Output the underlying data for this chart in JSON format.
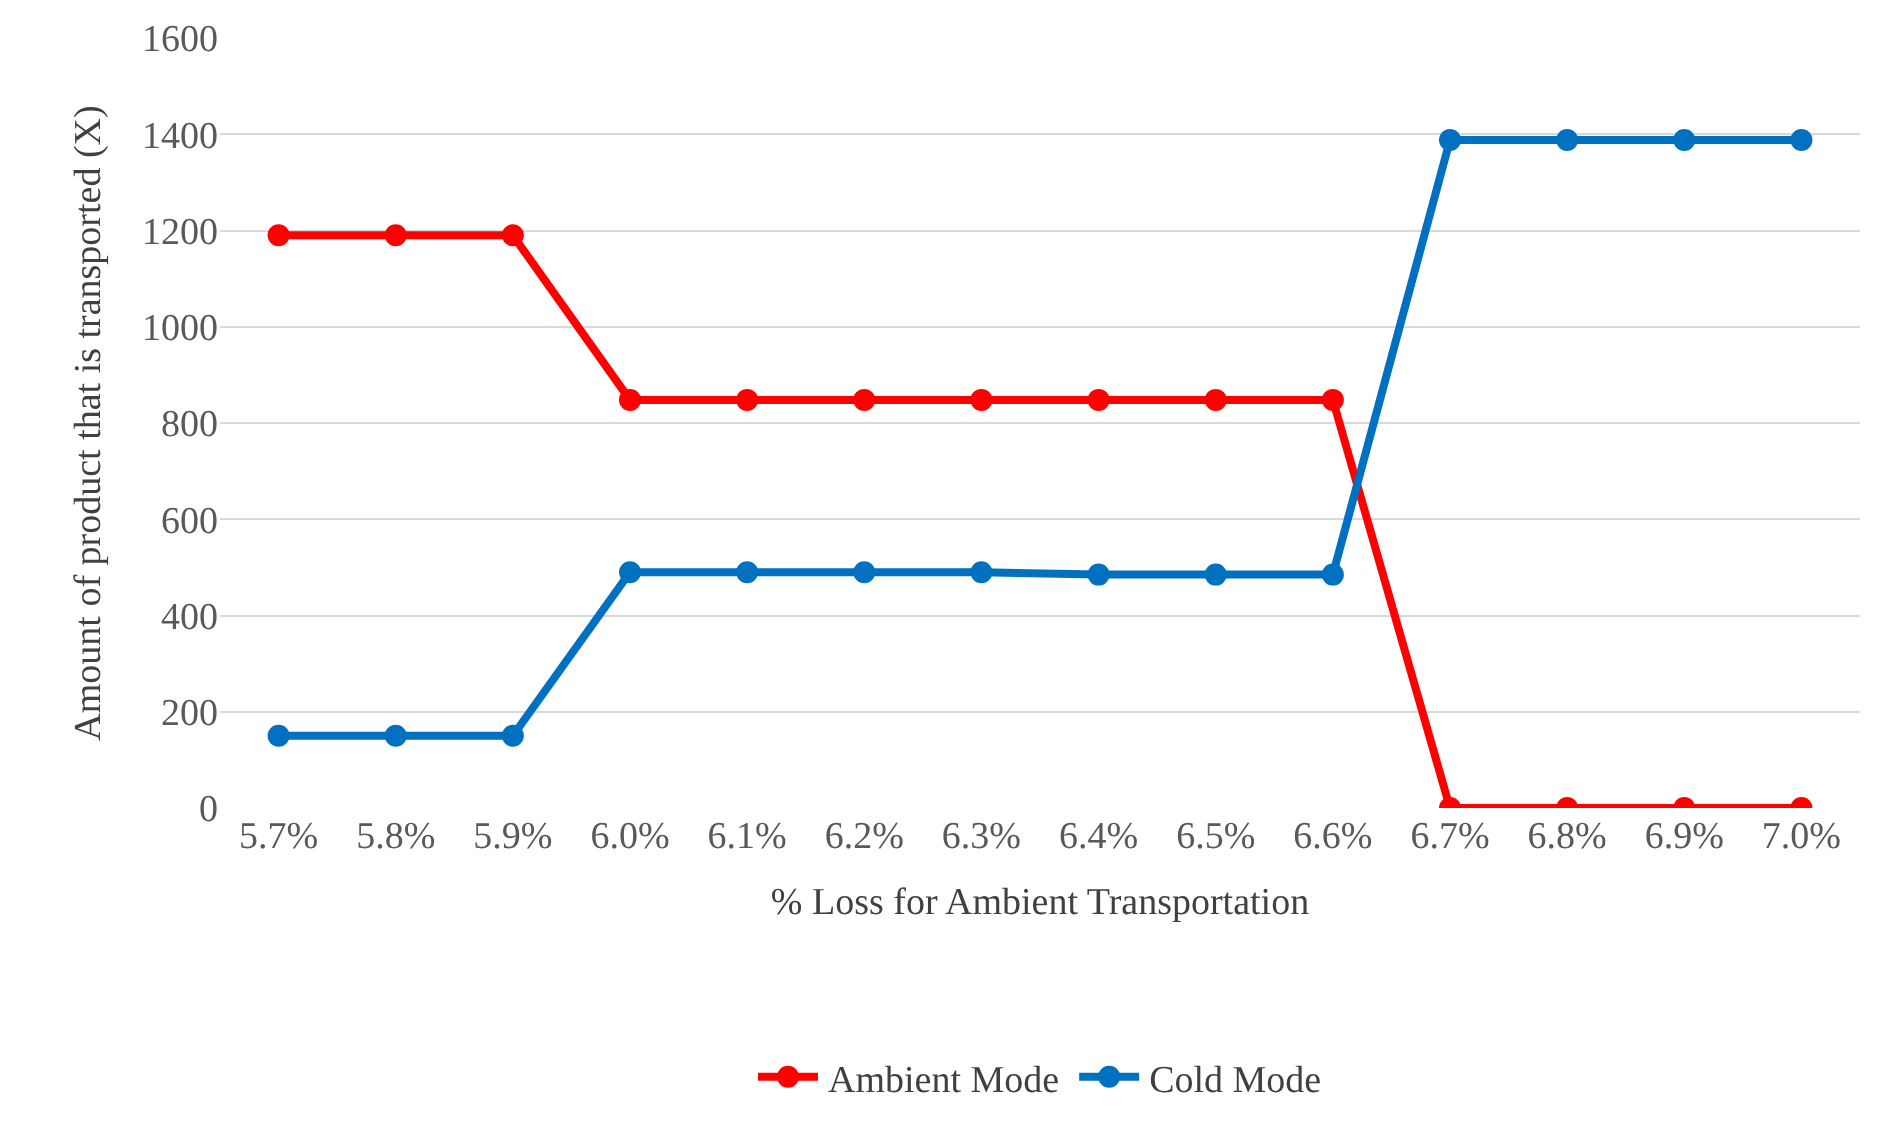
{
  "chart_data": {
    "type": "line",
    "xlabel": "% Loss for Ambient Transportation",
    "ylabel": "Amount of product that is transported (X)",
    "categories": [
      "5.7%",
      "5.8%",
      "5.9%",
      "6.0%",
      "6.1%",
      "6.2%",
      "6.3%",
      "6.4%",
      "6.5%",
      "6.6%",
      "6.7%",
      "6.8%",
      "6.9%",
      "7.0%"
    ],
    "series": [
      {
        "name": "Ambient Mode",
        "color": "#ff0000",
        "values": [
          1190,
          1190,
          1190,
          848,
          848,
          848,
          848,
          848,
          848,
          848,
          0,
          0,
          0,
          0
        ]
      },
      {
        "name": "Cold Mode",
        "color": "#0070c0",
        "values": [
          150,
          150,
          150,
          490,
          490,
          490,
          490,
          485,
          485,
          485,
          1388,
          1388,
          1388,
          1388
        ]
      }
    ],
    "ylim": [
      0,
      1600
    ],
    "yticks": [
      0,
      200,
      400,
      600,
      800,
      1000,
      1200,
      1400,
      1600
    ],
    "grid": "y",
    "legend": "bottom",
    "marker": "circle",
    "line_style": "solid"
  }
}
